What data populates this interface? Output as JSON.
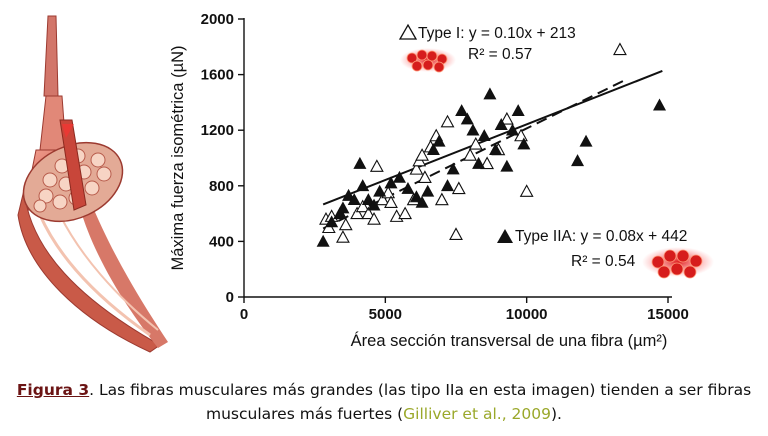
{
  "chart_data": {
    "type": "scatter",
    "xlabel": "Área sección transversal de una fibra (µm²)",
    "ylabel": "Máxima fuerza isométrica (µN)",
    "xlim": [
      0,
      15000
    ],
    "ylim": [
      0,
      2000
    ],
    "xticks": [
      0,
      5000,
      10000,
      15000
    ],
    "yticks": [
      0,
      400,
      800,
      1200,
      1600,
      2000
    ],
    "grid": false,
    "series": [
      {
        "name": "Type I",
        "marker": "open-triangle",
        "equation": "Type I: y = 0.10x + 213",
        "r2": "R² = 0.57",
        "fit": {
          "slope": 0.1,
          "intercept": 213,
          "x_range": [
            2800,
            13500
          ]
        },
        "fit_style": "dashed",
        "points": [
          [
            2900,
            560
          ],
          [
            3000,
            500
          ],
          [
            3100,
            580
          ],
          [
            3400,
            600
          ],
          [
            3500,
            430
          ],
          [
            3600,
            520
          ],
          [
            4000,
            600
          ],
          [
            4200,
            650
          ],
          [
            4400,
            600
          ],
          [
            4600,
            560
          ],
          [
            4700,
            940
          ],
          [
            4900,
            700
          ],
          [
            5100,
            750
          ],
          [
            5200,
            680
          ],
          [
            5400,
            580
          ],
          [
            5700,
            600
          ],
          [
            6000,
            700
          ],
          [
            6100,
            920
          ],
          [
            6200,
            980
          ],
          [
            6300,
            1020
          ],
          [
            6400,
            860
          ],
          [
            6600,
            1080
          ],
          [
            6800,
            1160
          ],
          [
            7000,
            700
          ],
          [
            7200,
            1260
          ],
          [
            7500,
            450
          ],
          [
            7600,
            780
          ],
          [
            8000,
            1020
          ],
          [
            8200,
            1100
          ],
          [
            8600,
            960
          ],
          [
            9000,
            1060
          ],
          [
            9300,
            1280
          ],
          [
            9800,
            1160
          ],
          [
            10000,
            760
          ],
          [
            13300,
            1780
          ]
        ]
      },
      {
        "name": "Type IIA",
        "marker": "filled-triangle",
        "equation": "Type IIA: y = 0.08x + 442",
        "r2": "R² = 0.54",
        "fit": {
          "slope": 0.08,
          "intercept": 442,
          "x_range": [
            2800,
            14800
          ]
        },
        "fit_style": "solid",
        "points": [
          [
            2800,
            400
          ],
          [
            3100,
            540
          ],
          [
            3400,
            600
          ],
          [
            3500,
            640
          ],
          [
            3700,
            730
          ],
          [
            3900,
            700
          ],
          [
            4100,
            960
          ],
          [
            4200,
            800
          ],
          [
            4400,
            700
          ],
          [
            4600,
            660
          ],
          [
            4800,
            760
          ],
          [
            5200,
            820
          ],
          [
            5500,
            860
          ],
          [
            5800,
            780
          ],
          [
            6100,
            720
          ],
          [
            6300,
            680
          ],
          [
            6500,
            760
          ],
          [
            6700,
            1060
          ],
          [
            6900,
            1120
          ],
          [
            7200,
            800
          ],
          [
            7400,
            920
          ],
          [
            7700,
            1340
          ],
          [
            7900,
            1280
          ],
          [
            8100,
            1200
          ],
          [
            8300,
            960
          ],
          [
            8500,
            1160
          ],
          [
            8700,
            1460
          ],
          [
            8900,
            1060
          ],
          [
            9100,
            1240
          ],
          [
            9300,
            940
          ],
          [
            9500,
            1200
          ],
          [
            9700,
            1340
          ],
          [
            9900,
            1100
          ],
          [
            11800,
            980
          ],
          [
            12100,
            1120
          ],
          [
            14700,
            1380
          ]
        ]
      }
    ]
  },
  "caption": {
    "label": "Figura 3",
    "text": ". Las fibras musculares más grandes (las tipo IIa en esta imagen) tienden a ser fibras musculares más fuertes (",
    "citation": "Gilliver et al., 2009",
    "end": ")."
  }
}
